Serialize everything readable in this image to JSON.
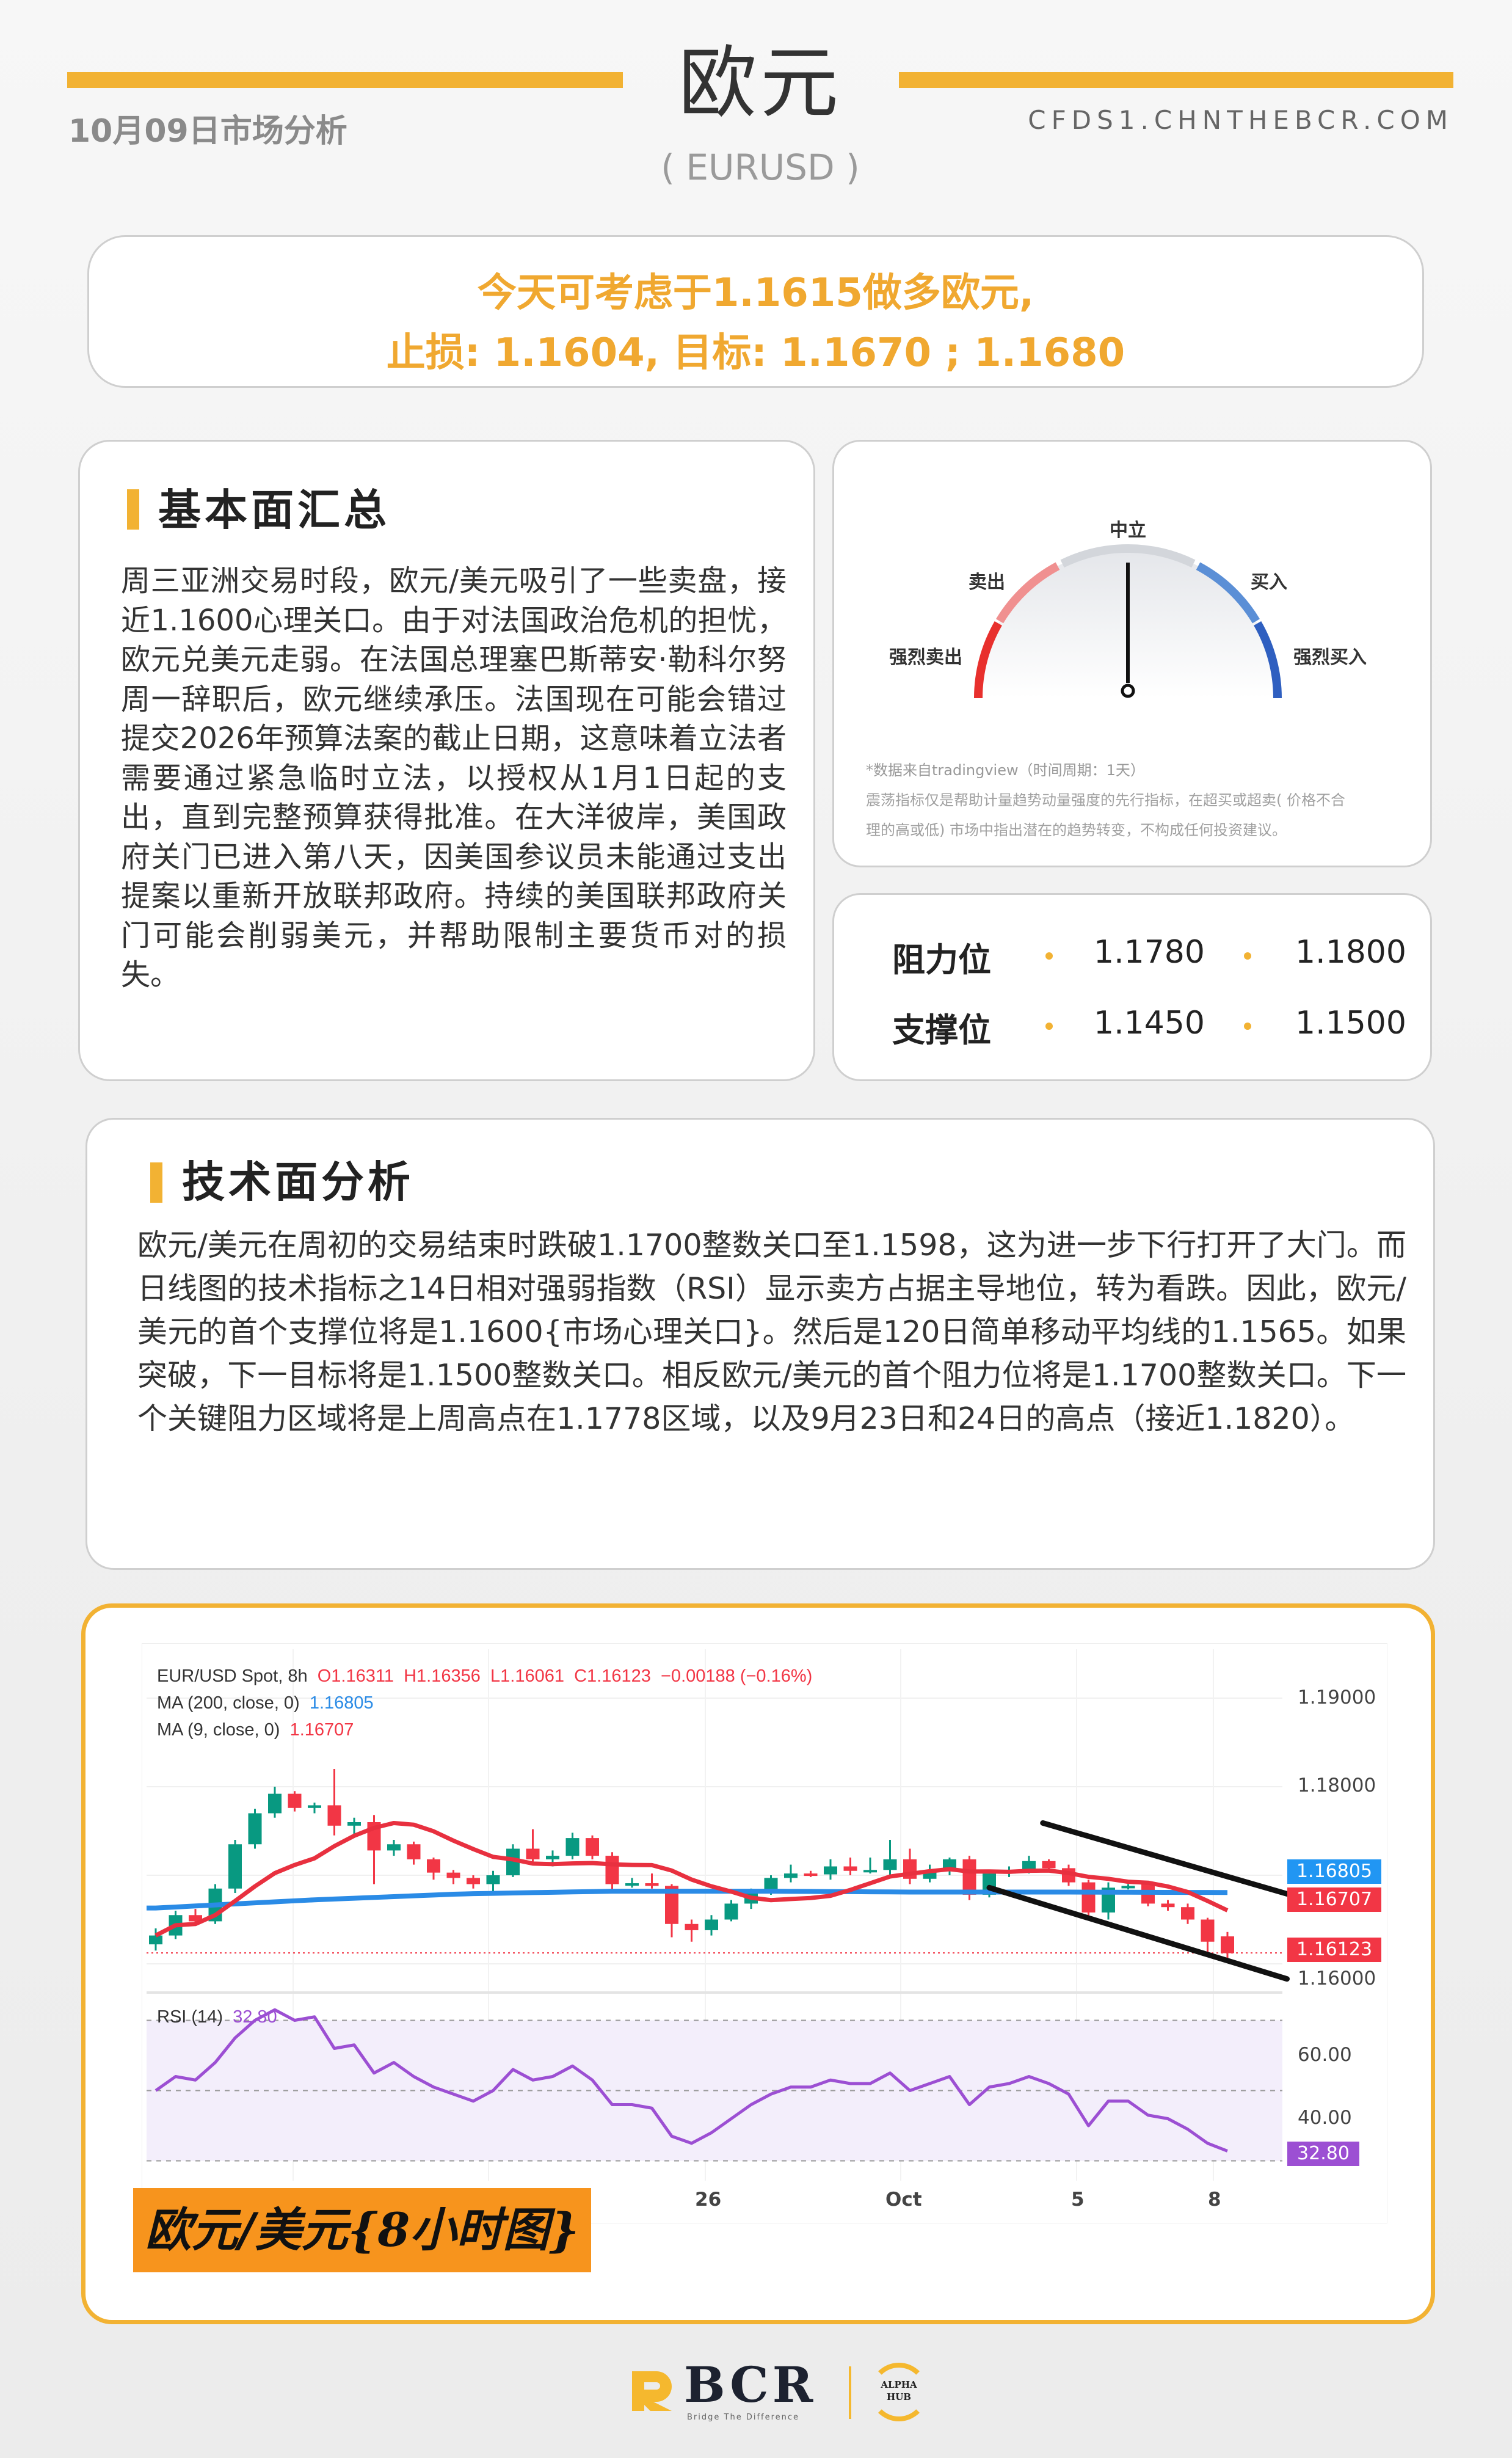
{
  "header": {
    "title": "欧元",
    "subtitle": "( EURUSD )",
    "date_label": "10月09日市场分析",
    "website": "CFDS1.CHNTHEBCR.COM"
  },
  "callout": {
    "line1": "今天可考虑于1.1615做多欧元,",
    "line2": "止损: 1.1604,  目标: 1.1670 ; 1.1680"
  },
  "fundamental": {
    "title": "基本面汇总",
    "text": "周三亚洲交易时段，欧元/美元吸引了一些卖盘，接近1.1600心理关口。由于对法国政治危机的担忧，欧元兑美元走弱。在法国总理塞巴斯蒂安·勒科尔努周一辞职后，欧元继续承压。法国现在可能会错过提交2026年预算法案的截止日期，这意味着立法者需要通过紧急临时立法，以授权从1月1日起的支出，直到完整预算获得批准。在大洋彼岸，美国政府关门已进入第八天，因美国参议员未能通过支出提案以重新开放联邦政府。持续的美国联邦政府关门可能会削弱美元，并帮助限制主要货币对的损失。"
  },
  "gauge": {
    "labels": {
      "strong_sell": "强烈卖出",
      "sell": "卖出",
      "neutral": "中立",
      "buy": "买入",
      "strong_buy": "强烈买入"
    },
    "reading": "中立",
    "value": "0",
    "colors": {
      "strong_sell": "#e8302d",
      "sell": "#f09090",
      "neutral": "#d3d6db",
      "buy": "#5b8fd6",
      "strong_buy": "#2f5fc0"
    },
    "source_note": "*数据来自tradingview（时间周期：1天）",
    "disclaimer_1": "震荡指标仅是帮助计量趋势动量强度的先行指标，在超买或超卖( 价格不合",
    "disclaimer_2": "理的高或低) 市场中指出潜在的趋势转变，不构成任何投资建议。"
  },
  "levels": {
    "resistance_label": "阻力位",
    "resistance": [
      "1.1780",
      "1.1800"
    ],
    "support_label": "支撑位",
    "support": [
      "1.1450",
      "1.1500"
    ]
  },
  "technical": {
    "title": "技术面分析",
    "text": "欧元/美元在周初的交易结束时跌破1.1700整数关口至1.1598，这为进一步下行打开了大门。而日线图的技术指标之14日相对强弱指数（RSI）显示卖方占据主导地位，转为看跌。因此，欧元/美元的首个支撑位将是1.1600{市场心理关口}。然后是120日简单移动平均线的1.1565。如果突破，下一目标将是1.1500整数关口。相反欧元/美元的首个阻力位将是1.1700整数关口。下一个关键阻力区域将是上周高点在1.1778区域，以及9月23日和24日的高点（接近1.1820）。"
  },
  "chart_data": {
    "type": "candlestick",
    "symbol_label": "EUR/USD Spot, 8h",
    "ohlc_label": {
      "o": "O1.16311",
      "h": "H1.16356",
      "l": "L1.16061",
      "c": "C1.16123",
      "change": "−0.00188 (−0.16%)"
    },
    "ma200_label": "MA (200, close, 0)",
    "ma200_value": "1.16805",
    "ma9_label": "MA (9, close, 0)",
    "ma9_value": "1.16707",
    "last_price": "1.16123",
    "price_ticks": [
      "1.19000",
      "1.18000",
      "1.16000"
    ],
    "ylim": [
      1.1555,
      1.1925
    ],
    "x_ticks": [
      "26",
      "Oct",
      "5",
      "8"
    ],
    "colors": {
      "up": "#089981",
      "down": "#f23645",
      "ma9": "#e8303f",
      "ma200": "#2a8be6",
      "rsi": "#9c4fd3",
      "channel": "#111111"
    },
    "candles": [
      [
        1.1622,
        1.164,
        1.1615,
        1.1632
      ],
      [
        1.1632,
        1.166,
        1.1628,
        1.1655
      ],
      [
        1.1655,
        1.1662,
        1.1645,
        1.1648
      ],
      [
        1.1648,
        1.169,
        1.1645,
        1.1685
      ],
      [
        1.1685,
        1.174,
        1.168,
        1.1735
      ],
      [
        1.1735,
        1.1775,
        1.173,
        1.177
      ],
      [
        1.177,
        1.18,
        1.1765,
        1.1792
      ],
      [
        1.1792,
        1.1795,
        1.1772,
        1.1776
      ],
      [
        1.1776,
        1.1782,
        1.177,
        1.1779
      ],
      [
        1.1779,
        1.182,
        1.1745,
        1.1756
      ],
      [
        1.1756,
        1.1765,
        1.1745,
        1.176
      ],
      [
        1.176,
        1.1768,
        1.169,
        1.1728
      ],
      [
        1.1728,
        1.174,
        1.1722,
        1.1735
      ],
      [
        1.1735,
        1.1738,
        1.1712,
        1.1718
      ],
      [
        1.1718,
        1.172,
        1.1695,
        1.1703
      ],
      [
        1.1703,
        1.1706,
        1.169,
        1.1697
      ],
      [
        1.1697,
        1.17,
        1.1685,
        1.169
      ],
      [
        1.169,
        1.1705,
        1.1682,
        1.17
      ],
      [
        1.17,
        1.1735,
        1.1698,
        1.173
      ],
      [
        1.173,
        1.1752,
        1.1712,
        1.1718
      ],
      [
        1.1718,
        1.1728,
        1.171,
        1.1722
      ],
      [
        1.1722,
        1.1748,
        1.1718,
        1.1742
      ],
      [
        1.1742,
        1.1745,
        1.1718,
        1.1722
      ],
      [
        1.1722,
        1.1726,
        1.1682,
        1.169
      ],
      [
        1.169,
        1.1697,
        1.1686,
        1.1691
      ],
      [
        1.1691,
        1.1702,
        1.1685,
        1.1688
      ],
      [
        1.1688,
        1.169,
        1.163,
        1.1645
      ],
      [
        1.1645,
        1.165,
        1.1625,
        1.1638
      ],
      [
        1.1638,
        1.1655,
        1.1632,
        1.165
      ],
      [
        1.165,
        1.1672,
        1.1648,
        1.1668
      ],
      [
        1.1668,
        1.1685,
        1.1662,
        1.168
      ],
      [
        1.168,
        1.17,
        1.1678,
        1.1697
      ],
      [
        1.1697,
        1.1712,
        1.1692,
        1.1702
      ],
      [
        1.1702,
        1.1705,
        1.1698,
        1.1701
      ],
      [
        1.1701,
        1.1718,
        1.1695,
        1.171
      ],
      [
        1.171,
        1.172,
        1.17,
        1.1705
      ],
      [
        1.1705,
        1.172,
        1.1702,
        1.1706
      ],
      [
        1.1706,
        1.174,
        1.17,
        1.1718
      ],
      [
        1.1718,
        1.173,
        1.169,
        1.1696
      ],
      [
        1.1696,
        1.1712,
        1.1692,
        1.1706
      ],
      [
        1.1706,
        1.172,
        1.17,
        1.1718
      ],
      [
        1.1718,
        1.1722,
        1.1672,
        1.1678
      ],
      [
        1.1678,
        1.1706,
        1.1675,
        1.1702
      ],
      [
        1.1702,
        1.171,
        1.1698,
        1.1706
      ],
      [
        1.1706,
        1.1722,
        1.1702,
        1.1716
      ],
      [
        1.1716,
        1.1718,
        1.1705,
        1.1708
      ],
      [
        1.1708,
        1.1712,
        1.1688,
        1.1692
      ],
      [
        1.1692,
        1.1695,
        1.1652,
        1.1658
      ],
      [
        1.1658,
        1.1692,
        1.165,
        1.1686
      ],
      [
        1.1686,
        1.169,
        1.1684,
        1.1688
      ],
      [
        1.169,
        1.1692,
        1.1665,
        1.1668
      ],
      [
        1.1668,
        1.1672,
        1.166,
        1.1664
      ],
      [
        1.1664,
        1.1668,
        1.1645,
        1.165
      ],
      [
        1.165,
        1.1652,
        1.1612,
        1.1625
      ],
      [
        1.1631,
        1.1636,
        1.1606,
        1.1612
      ]
    ],
    "ma200": [
      1.1663,
      1.1672,
      1.1679,
      1.1682,
      1.1682,
      1.1681,
      1.1681,
      1.16805
    ],
    "channel": {
      "upper": [
        [
          44.7,
          1.1759
        ],
        [
          57,
          1.1679
        ]
      ],
      "lower": [
        [
          42,
          1.1686
        ],
        [
          57,
          1.1583
        ]
      ]
    },
    "rsi": {
      "label": "RSI (14)",
      "value": "32.80",
      "ticks": [
        "60.00",
        "40.00"
      ],
      "ylim": [
        23,
        77
      ],
      "values": [
        50,
        54,
        53,
        58,
        65,
        70,
        73,
        70,
        71,
        62,
        63,
        55,
        58,
        54,
        51,
        49,
        47,
        50,
        56,
        53,
        54,
        57,
        53,
        46,
        46,
        45,
        37,
        35,
        38,
        42,
        46,
        49,
        51,
        51,
        53,
        52,
        52,
        55,
        50,
        52,
        54,
        46,
        51,
        52,
        54,
        52,
        49,
        40,
        47,
        47,
        43,
        42,
        39,
        35,
        32.8
      ]
    },
    "caption": "欧元/美元{8小时图}"
  },
  "footer": {
    "brand": "BCR",
    "tagline": "Bridge The Difference",
    "partner": "ALPHA HUB"
  },
  "theme": {
    "accent": "#f2b233",
    "callout_text": "#f0a830"
  }
}
